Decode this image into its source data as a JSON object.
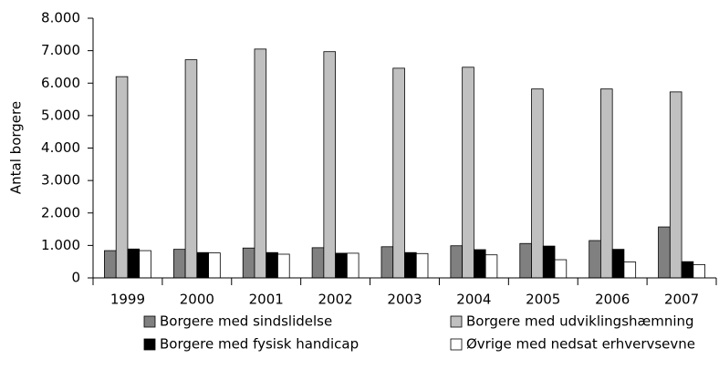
{
  "chart_data": {
    "type": "bar",
    "y_label": "Antal borgere",
    "categories": [
      "1999",
      "2000",
      "2001",
      "2002",
      "2003",
      "2004",
      "2005",
      "2006",
      "2007"
    ],
    "series": [
      {
        "name": "Borgere med sindslidelse",
        "color": "#808080",
        "values": [
          840,
          880,
          920,
          930,
          960,
          990,
          1060,
          1150,
          1570
        ]
      },
      {
        "name": "Borgere med udviklingshæmning",
        "color": "#c0c0c0",
        "values": [
          6200,
          6720,
          7050,
          6970,
          6460,
          6490,
          5820,
          5820,
          5730
        ]
      },
      {
        "name": "Borgere med fysisk handicap",
        "color": "#000000",
        "values": [
          890,
          780,
          780,
          760,
          780,
          870,
          980,
          880,
          500
        ]
      },
      {
        "name": "Øvrige med nedsat erhvervsevne",
        "color": "#ffffff",
        "values": [
          840,
          770,
          730,
          760,
          750,
          710,
          560,
          490,
          410
        ]
      }
    ],
    "ylim": [
      0,
      8000
    ],
    "yticks": [
      0,
      {
        "value": 1000,
        "label": "1.000"
      },
      {
        "value": 2000,
        "label": "2.000"
      },
      {
        "value": 3000,
        "label": "3.000"
      },
      {
        "value": 4000,
        "label": "4.000"
      },
      {
        "value": 5000,
        "label": "5.000"
      },
      {
        "value": 6000,
        "label": "6.000"
      },
      {
        "value": 7000,
        "label": "7.000"
      },
      {
        "value": 8000,
        "label": "8.000"
      }
    ],
    "grid": false
  }
}
